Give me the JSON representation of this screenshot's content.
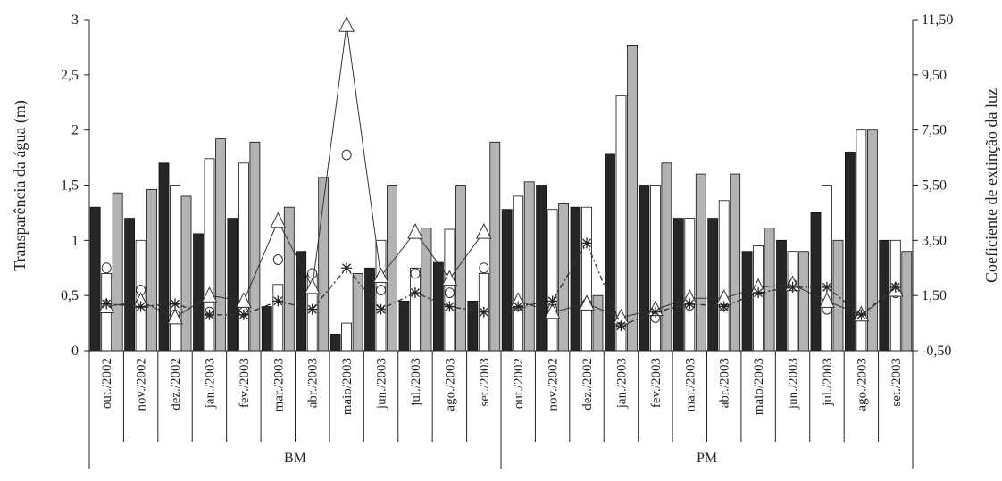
{
  "chart_data": {
    "type": "bar",
    "title": "",
    "ylabel": "Transparência da água (m)",
    "y2label": "Coeficiente de extinção da luz",
    "ylim": [
      0,
      3
    ],
    "y2lim": [
      -0.5,
      11.5
    ],
    "yticks": [
      "0",
      "0,5",
      "1",
      "1,5",
      "2",
      "2,5",
      "3"
    ],
    "y2ticks": [
      "-0,50",
      "1,50",
      "3,50",
      "5,50",
      "7,50",
      "9,50",
      "11,50"
    ],
    "groups": [
      {
        "label": "BM",
        "categories": [
          "out./2002",
          "nov./2002",
          "dez./2002",
          "jan./2003",
          "fev./2003",
          "mar./2003",
          "abr./2003",
          "maio/2003",
          "jun./2003",
          "jul./2003",
          "ago./2003",
          "set./2003"
        ]
      },
      {
        "label": "PM",
        "categories": [
          "out./2002",
          "nov./2002",
          "dez./2002",
          "jan./2003",
          "fev./2003",
          "mar./2003",
          "abr./2003",
          "maio/2003",
          "jun./2003",
          "jul./2003",
          "ago./2003",
          "set./2003"
        ]
      }
    ],
    "bar_series": [
      {
        "axis": "left",
        "fill": "#262626",
        "values": [
          1.3,
          1.2,
          1.7,
          1.06,
          1.2,
          0.4,
          0.9,
          0.15,
          0.75,
          0.45,
          0.8,
          0.45,
          1.28,
          1.5,
          1.3,
          1.78,
          1.5,
          1.2,
          1.2,
          0.9,
          1.0,
          1.25,
          1.8,
          1.0
        ]
      },
      {
        "axis": "left",
        "fill": "#ffffff",
        "values": [
          0.7,
          1.0,
          1.5,
          1.74,
          1.7,
          0.6,
          0.7,
          0.25,
          1.0,
          0.75,
          1.1,
          0.7,
          1.4,
          1.28,
          1.3,
          2.31,
          1.5,
          1.2,
          1.36,
          0.95,
          0.9,
          1.5,
          2.0,
          1.0
        ]
      },
      {
        "axis": "left",
        "fill": "#b3b3b3",
        "values": [
          1.43,
          1.46,
          1.4,
          1.92,
          1.89,
          1.3,
          1.57,
          0.7,
          1.5,
          1.11,
          1.5,
          1.89,
          1.53,
          1.33,
          0.5,
          2.77,
          1.7,
          1.6,
          1.6,
          1.11,
          0.9,
          1.0,
          2.0,
          0.9
        ]
      }
    ],
    "line_series": [
      {
        "axis": "right",
        "marker": "circle",
        "line": "none",
        "values": [
          2.5,
          1.7,
          0.8,
          0.9,
          0.9,
          2.8,
          2.3,
          6.6,
          1.7,
          2.3,
          1.6,
          2.5,
          1.15,
          1.0,
          1.2,
          0.5,
          0.7,
          1.15,
          1.15,
          1.7,
          1.9,
          1.0,
          0.8,
          1.6
        ]
      },
      {
        "axis": "right",
        "marker": "triangle",
        "line": "solid",
        "values": [
          1.1,
          1.3,
          0.7,
          1.5,
          1.3,
          4.2,
          1.8,
          11.3,
          2.2,
          3.8,
          2.1,
          3.8,
          1.3,
          0.9,
          1.2,
          0.7,
          1.0,
          1.4,
          1.4,
          1.8,
          1.9,
          1.3,
          0.8,
          1.7
        ]
      },
      {
        "axis": "right",
        "marker": "star",
        "line": "dashdot",
        "values": [
          1.2,
          1.1,
          1.2,
          0.8,
          0.8,
          1.3,
          1.0,
          2.5,
          1.0,
          1.6,
          1.1,
          0.9,
          1.1,
          1.3,
          3.4,
          0.4,
          0.9,
          1.2,
          1.1,
          1.6,
          1.8,
          1.8,
          0.8,
          1.8
        ]
      }
    ]
  }
}
